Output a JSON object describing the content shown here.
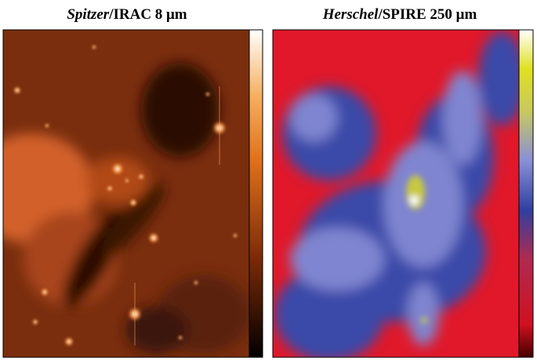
{
  "panels": [
    {
      "title_italic": "Spitzer",
      "title_rest": "/IRAC 8 μm"
    },
    {
      "title_italic": "Herschel",
      "title_rest": "/SPIRE 250 μm"
    }
  ]
}
